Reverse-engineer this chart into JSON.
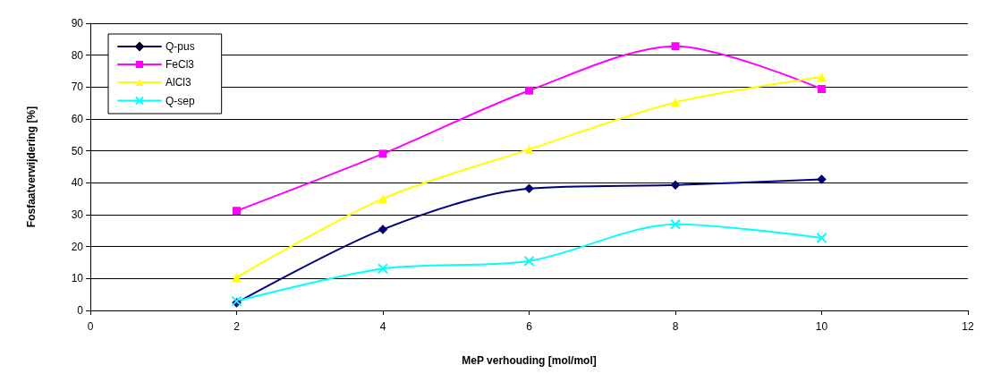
{
  "chart_data": {
    "type": "line",
    "xlabel": "MeP verhouding [mol/mol]",
    "ylabel": "Fosfaatverwijdering [%]",
    "x": [
      2,
      4,
      6,
      8,
      10
    ],
    "series": [
      {
        "name": "Q-pus",
        "color": "#000080",
        "marker": "diamond",
        "values": [
          2.4,
          25.4,
          38.2,
          39.3,
          41.1
        ]
      },
      {
        "name": "FeCl3",
        "color": "#ff00ff",
        "marker": "square",
        "values": [
          31.2,
          49.1,
          68.9,
          82.8,
          69.4
        ]
      },
      {
        "name": "AlCl3",
        "color": "#ffff00",
        "marker": "triangle",
        "values": [
          10.4,
          35,
          50.5,
          65.2,
          73.2
        ]
      },
      {
        "name": "Q-sep",
        "color": "#00ffff",
        "marker": "cross",
        "values": [
          2.9,
          13.1,
          15.5,
          27,
          22.7
        ]
      }
    ],
    "xlim": [
      0,
      12
    ],
    "xticks": [
      0,
      2,
      4,
      6,
      8,
      10,
      12
    ],
    "ylim": [
      0,
      90
    ],
    "yticks": [
      0,
      10,
      20,
      30,
      40,
      50,
      60,
      70,
      80,
      90
    ],
    "grid": "y",
    "legend": "top left",
    "line_style": "solid"
  }
}
